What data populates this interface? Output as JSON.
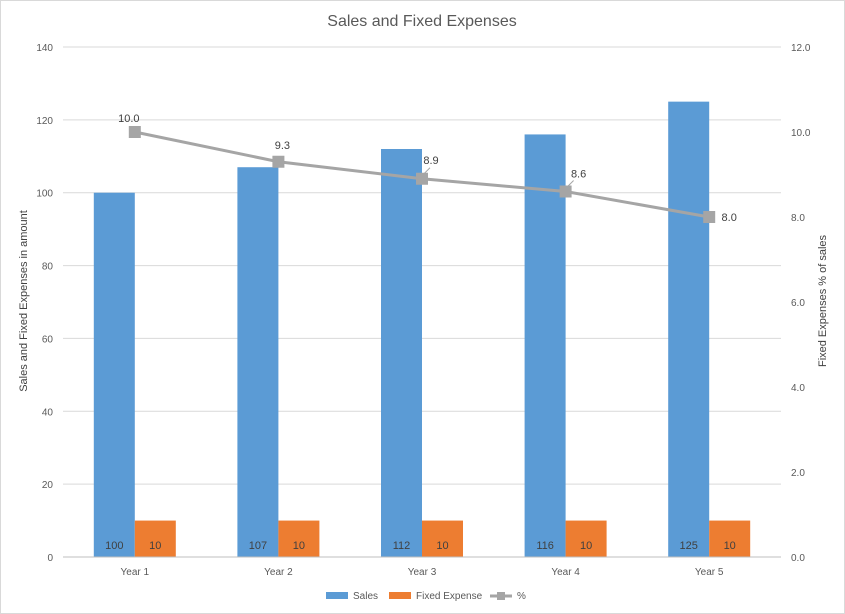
{
  "chart_data": {
    "type": "bar",
    "title": "Sales and Fixed Expenses",
    "categories": [
      "Year 1",
      "Year 2",
      "Year 3",
      "Year 4",
      "Year 5"
    ],
    "series": [
      {
        "name": "Sales",
        "type": "bar",
        "axis": "left",
        "color": "#5B9BD5",
        "values": [
          100,
          107,
          112,
          116,
          125
        ]
      },
      {
        "name": "Fixed Expense",
        "type": "bar",
        "axis": "left",
        "color": "#ED7D31",
        "values": [
          10,
          10,
          10,
          10,
          10
        ]
      },
      {
        "name": "%",
        "type": "line",
        "axis": "right",
        "color": "#A5A5A5",
        "values": [
          10.0,
          9.3,
          8.9,
          8.6,
          8.0
        ]
      }
    ],
    "ylabel": "Sales and Fixed Expenses in amount",
    "y2label": "Fixed Expenses % of sales",
    "ylim": [
      0,
      140
    ],
    "y_ticks": [
      "0",
      "20",
      "40",
      "60",
      "80",
      "100",
      "120",
      "140"
    ],
    "y2lim": [
      0,
      12
    ],
    "y2_ticks": [
      "0.0",
      "2.0",
      "4.0",
      "6.0",
      "8.0",
      "10.0",
      "12.0"
    ],
    "bar_labels": {
      "Sales": [
        "100",
        "107",
        "112",
        "116",
        "125"
      ],
      "Fixed Expense": [
        "10",
        "10",
        "10",
        "10",
        "10"
      ]
    },
    "line_labels": [
      "10.0",
      "9.3",
      "8.9",
      "8.6",
      "8.0"
    ],
    "grid": true,
    "legend": "bottom"
  }
}
